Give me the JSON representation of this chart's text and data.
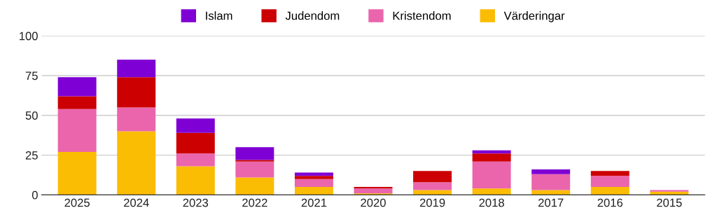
{
  "chart_data": {
    "type": "bar",
    "stacked": true,
    "categories": [
      "2025",
      "2024",
      "2023",
      "2022",
      "2021",
      "2020",
      "2019",
      "2018",
      "2017",
      "2016",
      "2015"
    ],
    "series": [
      {
        "name": "Värderingar",
        "color": "#fbbc04",
        "values": [
          27,
          40,
          18,
          11,
          5,
          1,
          3,
          4,
          3,
          5,
          2
        ]
      },
      {
        "name": "Kristendom",
        "color": "#ea65ab",
        "values": [
          27,
          15,
          8,
          10,
          5,
          3,
          5,
          17,
          10,
          7,
          1
        ]
      },
      {
        "name": "Judendom",
        "color": "#cc0000",
        "values": [
          8,
          19,
          13,
          1,
          2,
          1,
          7,
          5,
          0,
          3,
          0
        ]
      },
      {
        "name": "Islam",
        "color": "#7f00d4",
        "values": [
          12,
          11,
          9,
          8,
          2,
          0,
          0,
          2,
          3,
          0,
          0
        ]
      }
    ],
    "ylim": [
      0,
      100
    ],
    "yticks": [
      0,
      25,
      50,
      75,
      100
    ],
    "grid": "y",
    "legend": "top"
  }
}
